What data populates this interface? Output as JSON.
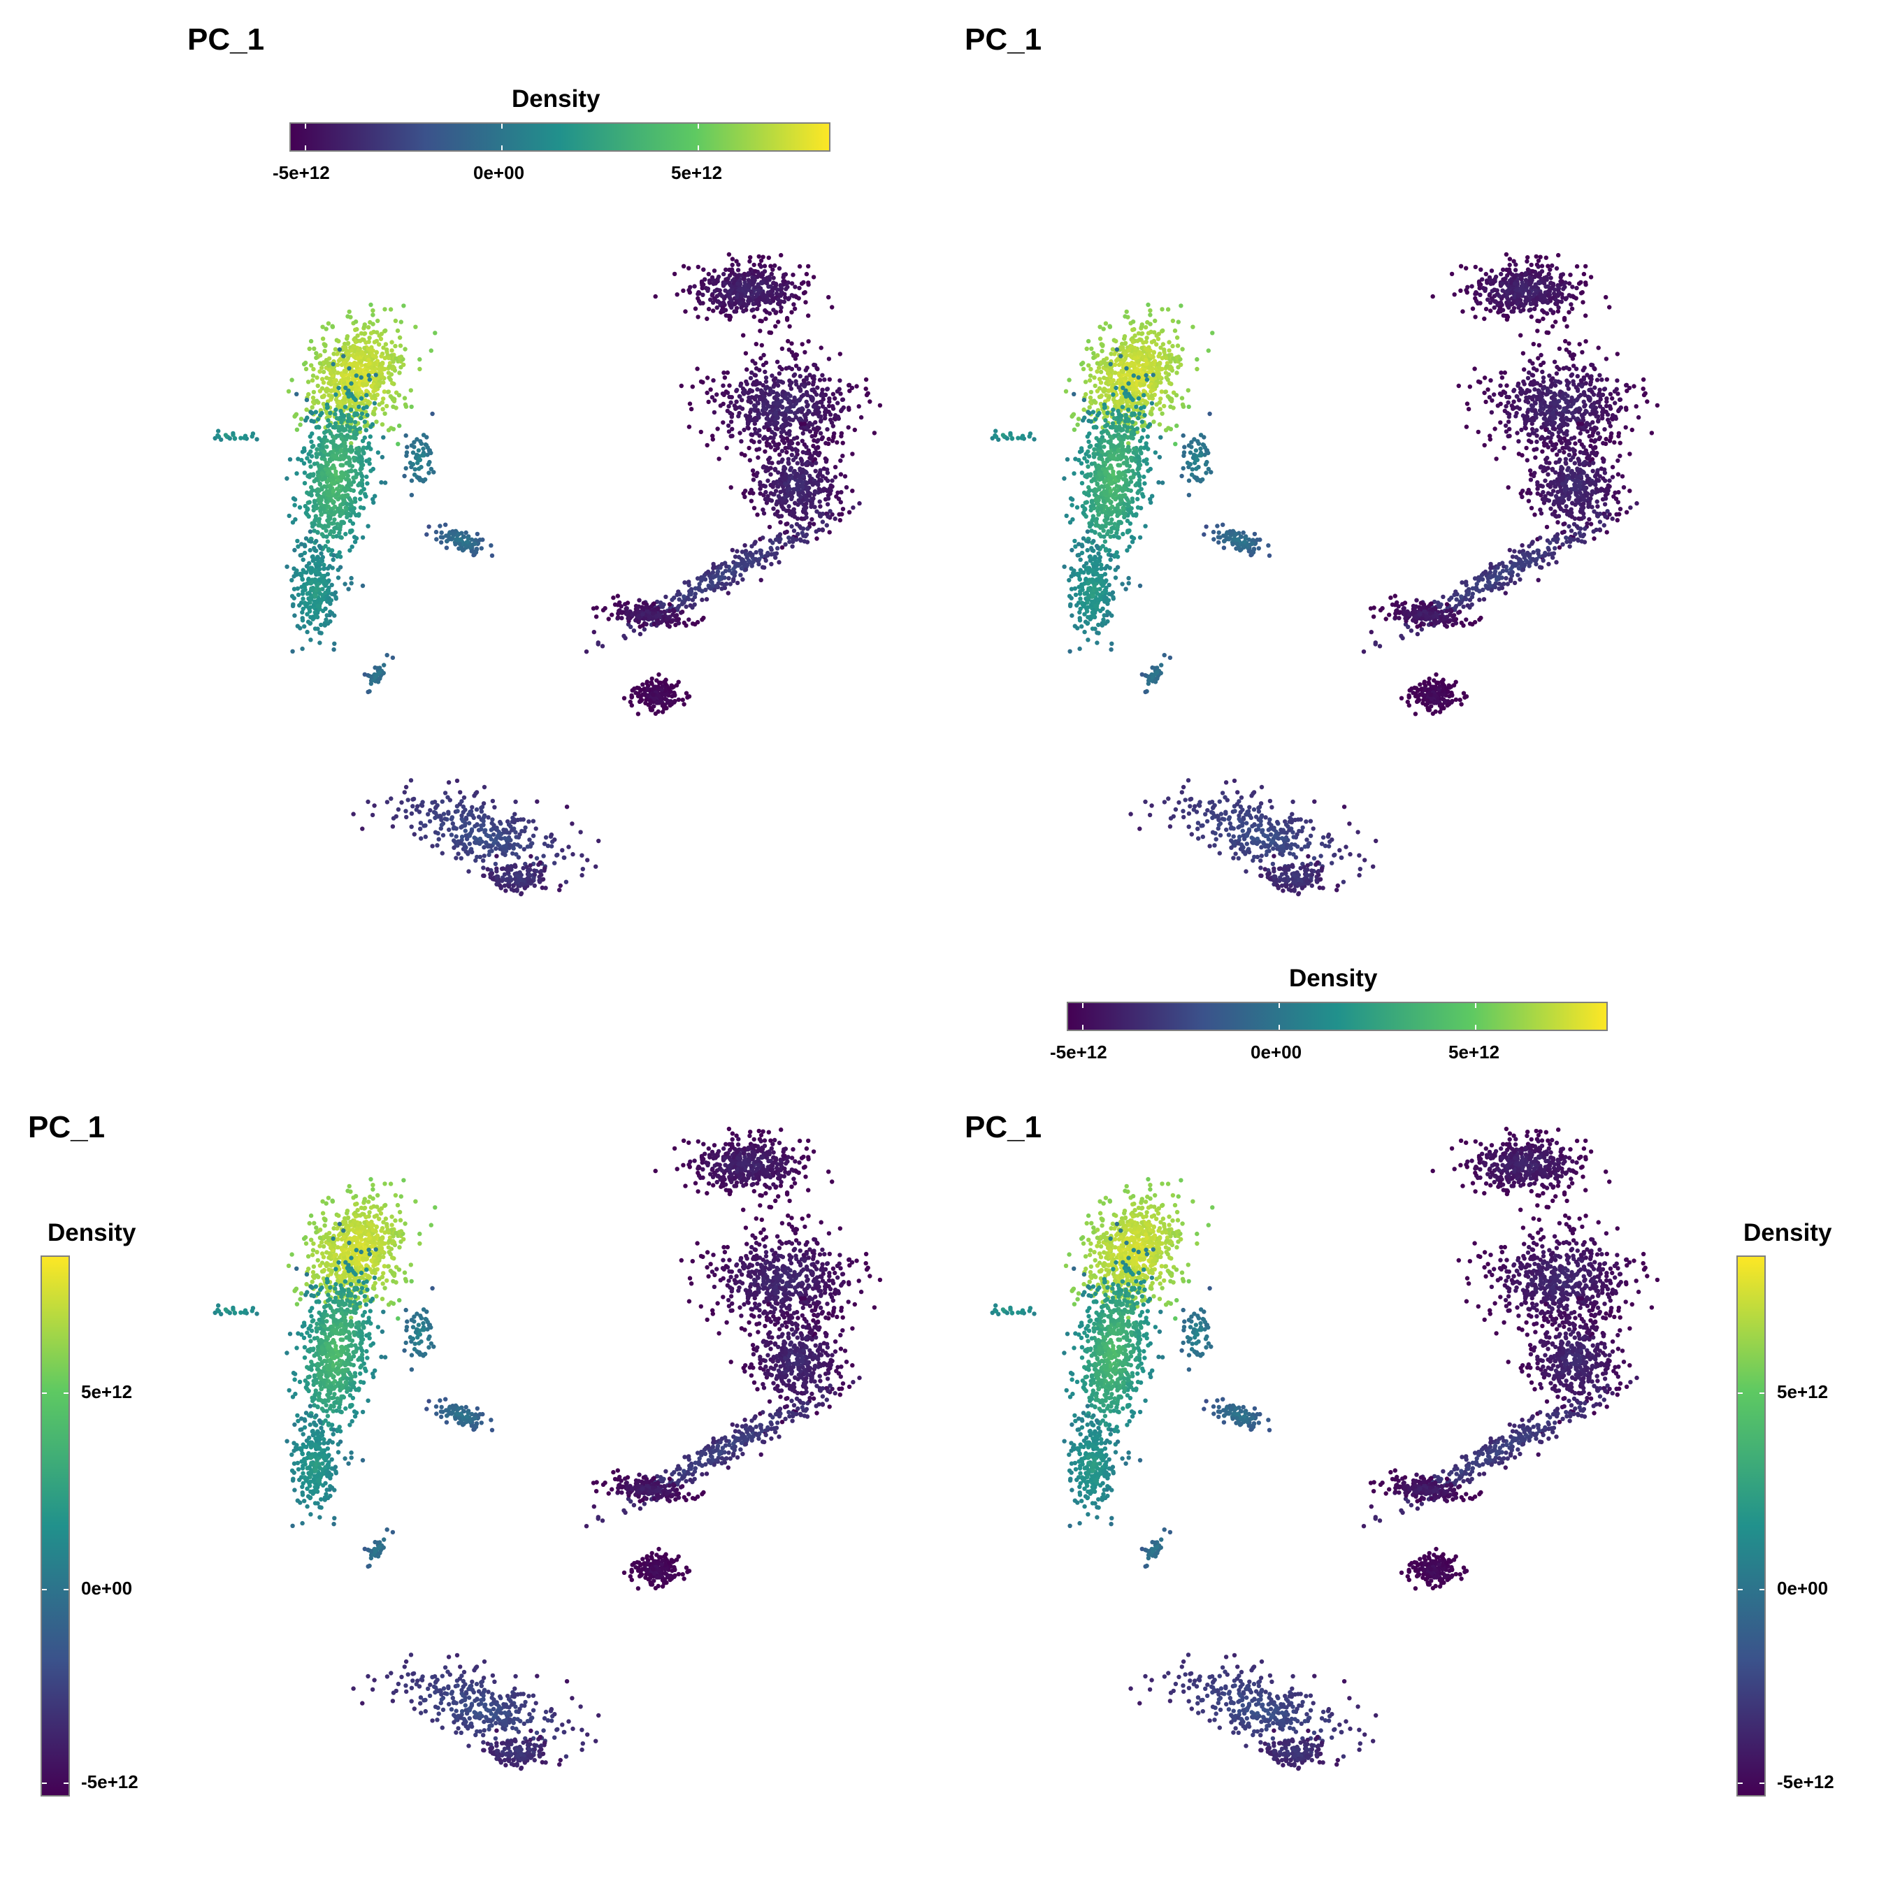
{
  "colors": {
    "viridis": [
      "#440154",
      "#3b528b",
      "#21918c",
      "#5ec962",
      "#fde725"
    ]
  },
  "legend": {
    "title": "Density",
    "ticks": [
      "-5e+12",
      "0e+00",
      "5e+12"
    ],
    "tick_values": [
      -5000000000000.0,
      0,
      5000000000000.0
    ],
    "range": [
      -5500000000000.0,
      8800000000000.0
    ]
  },
  "chart_data": [
    {
      "type": "scatter",
      "title": "PC_1",
      "legend_title": "Density",
      "legend_placement": "top",
      "color_scale": "viridis",
      "color_range": [
        -5500000000000.0,
        8800000000000.0
      ]
    },
    {
      "type": "scatter",
      "title": "PC_1",
      "legend_title": "Density",
      "legend_placement": "bottom",
      "color_scale": "viridis",
      "color_range": [
        -5500000000000.0,
        8800000000000.0
      ]
    },
    {
      "type": "scatter",
      "title": "PC_1",
      "legend_title": "Density",
      "legend_placement": "left",
      "color_scale": "viridis",
      "color_range": [
        -5500000000000.0,
        8800000000000.0
      ]
    },
    {
      "type": "scatter",
      "title": "PC_1",
      "legend_title": "Density",
      "legend_placement": "right",
      "color_scale": "viridis",
      "color_range": [
        -5500000000000.0,
        8800000000000.0
      ]
    }
  ]
}
